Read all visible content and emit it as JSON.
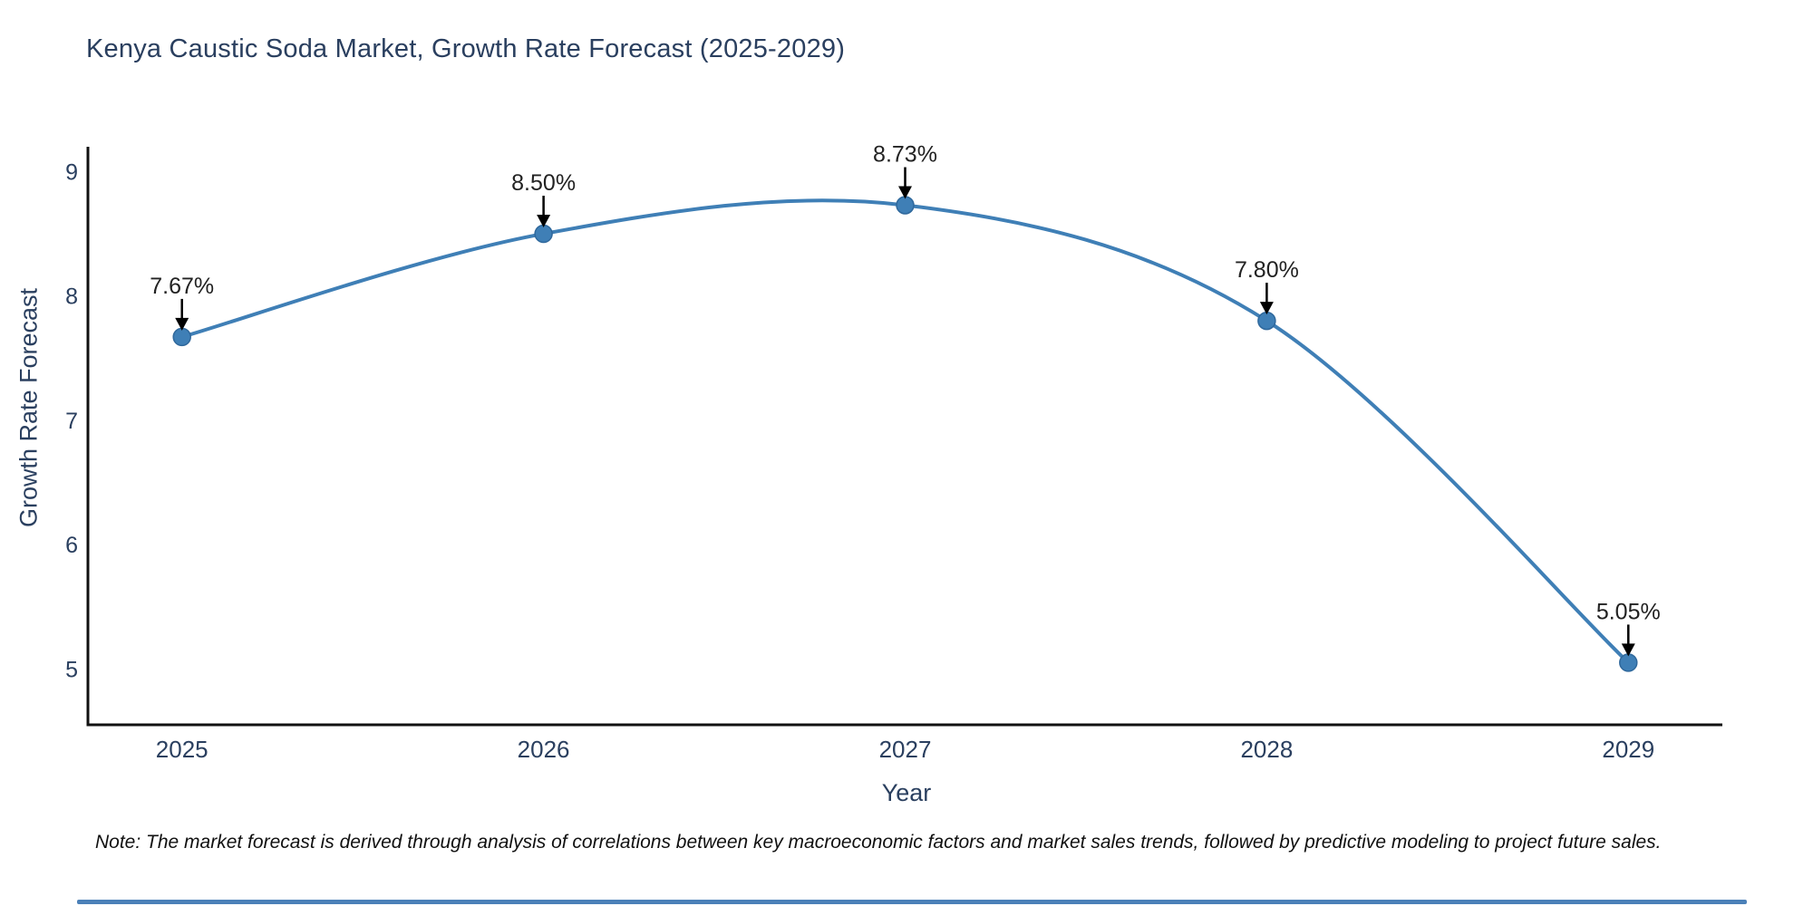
{
  "title": "Kenya Caustic Soda Market, Growth Rate Forecast (2025-2029)",
  "footnote": "Note: The market forecast is derived through analysis of correlations between key macroeconomic factors and market sales trends, followed by predictive modeling to project future sales.",
  "colors": {
    "line": "#3f7fb6",
    "marker_fill": "#3f7fb6",
    "marker_edge": "#2f689c",
    "axis": "#111111",
    "tick_text": "#2a3f5f",
    "annotation_text": "#222222",
    "arrow": "#000000",
    "footer_rule": "#4b80b8",
    "background": "#ffffff"
  },
  "chart_data": {
    "type": "line",
    "title": "Kenya Caustic Soda Market, Growth Rate Forecast (2025-2029)",
    "xlabel": "Year",
    "ylabel": "Growth Rate Forecast",
    "x": [
      2025,
      2026,
      2027,
      2028,
      2029
    ],
    "y": [
      7.67,
      8.5,
      8.73,
      7.8,
      5.05
    ],
    "point_labels": [
      "7.67%",
      "8.50%",
      "8.73%",
      "7.80%",
      "5.05%"
    ],
    "x_ticks": [
      "2025",
      "2026",
      "2027",
      "2028",
      "2029"
    ],
    "y_ticks": [
      5,
      6,
      7,
      8,
      9
    ],
    "xlim": [
      2024.74,
      2029.26
    ],
    "ylim": [
      4.55,
      9.2
    ],
    "line_shape": "spline",
    "grid": false,
    "legend": "none"
  }
}
